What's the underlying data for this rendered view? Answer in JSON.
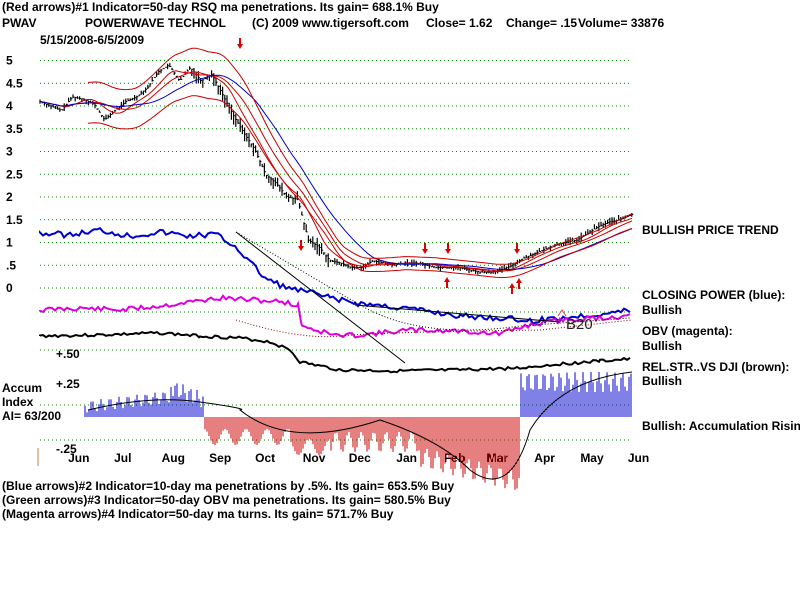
{
  "header": {
    "line1": "(Red arrows)#1 Indicator=50-day RSQ ma penetrations. Its gain= 688.1% Buy",
    "symbol": "PWAV",
    "company": "POWERWAVE TECHNOL",
    "copyright": "(C) 2009 www.tigersoft.com",
    "close": "Close=  1.62",
    "change": "Change= .15",
    "volume": "Volume=  33876",
    "date_range": "5/15/2008-6/5/2009"
  },
  "footer": {
    "line1": "(Blue arrows)#2 Indicator=10-day ma penetrations by .5%. Its gain= 653.5% Buy",
    "line2": "(Green arrows)#3 Indicator=50-day OBV ma penetrations. Its gain= 580.5% Buy",
    "line3": "(Magenta arrows)#4 Indicator=50-day ma turns. Its gain= 571.7% Buy"
  },
  "right_labels": {
    "price_trend": "BULLISH PRICE TREND",
    "closing_power": "CLOSING POWER (blue):",
    "closing_power_state": "Bullish",
    "obv": "OBV (magenta):",
    "obv_state": "Bullish",
    "relstr": "REL.STR..VS DJI (brown):",
    "relstr_state": "Bullish",
    "accum": "Bullish: Accumulation Rising"
  },
  "accum_panel": {
    "title_line1": "Accum",
    "title_line2": "Index",
    "ai": "AI= 63/200",
    "top_tick": "+.50",
    "mid_tick": "+.25",
    "low_tick": "-.25"
  },
  "annotation": "B20",
  "colors": {
    "price": "#000000",
    "ma_red": "#cc0000",
    "ma_blue": "#0000cc",
    "closing_power": "#0000cc",
    "obv": "#dd00dd",
    "relstr": "#000000",
    "accum_pos": "#0000cc",
    "accum_neg": "#cc0000",
    "grid": "#008800",
    "arrow": "#dd0000"
  },
  "chart_data": {
    "type": "line",
    "title": "POWERWAVE TECHNOL",
    "xlabel": "",
    "ylabel": "",
    "x_range": [
      "2008-05-15",
      "2009-06-05"
    ],
    "x_ticks": [
      "Jun",
      "Jul",
      "Aug",
      "Sep",
      "Oct",
      "Nov",
      "Dec",
      "Jan",
      "Feb",
      "Mar",
      "Apr",
      "May",
      "Jun"
    ],
    "ylim": [
      0,
      5.3
    ],
    "y_ticks": [
      {
        "label": "5",
        "value": 5
      },
      {
        "label": "4.5",
        "value": 4.5
      },
      {
        "label": "4",
        "value": 4
      },
      {
        "label": "3.5",
        "value": 3.5
      },
      {
        "label": "3",
        "value": 3
      },
      {
        "label": "2.5",
        "value": 2.5
      },
      {
        "label": "2",
        "value": 2
      },
      {
        "label": "1.5",
        "value": 1.5
      },
      {
        "label": "1",
        "value": 1
      },
      {
        "label": ".5",
        "value": 0.5
      },
      {
        "label": "0",
        "value": 0
      }
    ],
    "grid": true,
    "series": [
      {
        "name": "Price",
        "values": [
          [
            "2008-05-15",
            4.1
          ],
          [
            "2008-05-22",
            4.0
          ],
          [
            "2008-05-29",
            3.9
          ],
          [
            "2008-06-05",
            4.2
          ],
          [
            "2008-06-12",
            4.15
          ],
          [
            "2008-06-19",
            4.05
          ],
          [
            "2008-06-26",
            3.7
          ],
          [
            "2008-07-03",
            3.9
          ],
          [
            "2008-07-10",
            4.1
          ],
          [
            "2008-07-17",
            4.2
          ],
          [
            "2008-07-24",
            4.4
          ],
          [
            "2008-07-31",
            4.75
          ],
          [
            "2008-08-07",
            4.9
          ],
          [
            "2008-08-14",
            4.55
          ],
          [
            "2008-08-21",
            4.85
          ],
          [
            "2008-08-28",
            4.55
          ],
          [
            "2008-09-04",
            4.7
          ],
          [
            "2008-09-11",
            4.25
          ],
          [
            "2008-09-18",
            3.8
          ],
          [
            "2008-09-25",
            3.4
          ],
          [
            "2008-10-02",
            3.05
          ],
          [
            "2008-10-09",
            2.5
          ],
          [
            "2008-10-16",
            2.3
          ],
          [
            "2008-10-23",
            2.0
          ],
          [
            "2008-10-30",
            1.95
          ],
          [
            "2008-11-06",
            1.05
          ],
          [
            "2008-11-13",
            0.9
          ],
          [
            "2008-11-20",
            0.6
          ],
          [
            "2008-11-27",
            0.55
          ],
          [
            "2008-12-04",
            0.45
          ],
          [
            "2008-12-11",
            0.45
          ],
          [
            "2008-12-18",
            0.6
          ],
          [
            "2008-12-25",
            0.55
          ],
          [
            "2009-01-01",
            0.5
          ],
          [
            "2009-01-08",
            0.55
          ],
          [
            "2009-01-15",
            0.55
          ],
          [
            "2009-01-22",
            0.5
          ],
          [
            "2009-01-29",
            0.45
          ],
          [
            "2009-02-05",
            0.45
          ],
          [
            "2009-02-12",
            0.45
          ],
          [
            "2009-02-19",
            0.4
          ],
          [
            "2009-02-26",
            0.35
          ],
          [
            "2009-03-05",
            0.35
          ],
          [
            "2009-03-12",
            0.4
          ],
          [
            "2009-03-19",
            0.5
          ],
          [
            "2009-03-26",
            0.65
          ],
          [
            "2009-04-02",
            0.75
          ],
          [
            "2009-04-09",
            0.85
          ],
          [
            "2009-04-16",
            0.95
          ],
          [
            "2009-04-23",
            1.0
          ],
          [
            "2009-04-30",
            1.05
          ],
          [
            "2009-05-07",
            1.2
          ],
          [
            "2009-05-14",
            1.35
          ],
          [
            "2009-05-21",
            1.45
          ],
          [
            "2009-05-28",
            1.5
          ],
          [
            "2009-06-05",
            1.62
          ]
        ]
      }
    ],
    "y_ticks_accum": [
      {
        "label": "+.50",
        "value": 0.5
      },
      {
        "label": "+.25",
        "value": 0.25
      },
      {
        "label": "-.25",
        "value": -0.25
      }
    ]
  }
}
